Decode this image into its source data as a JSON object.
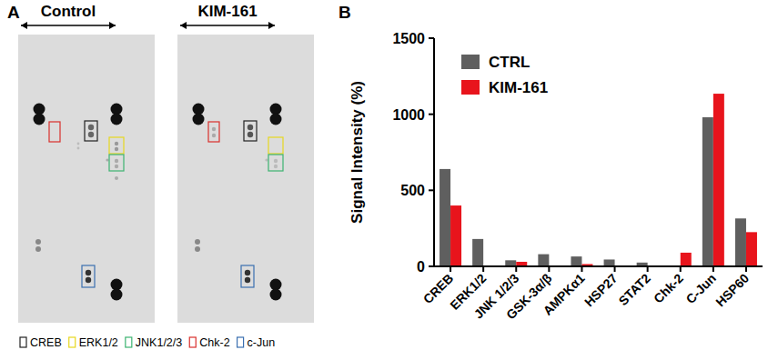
{
  "panel_a": {
    "label": "A",
    "membranes": [
      {
        "title": "Control"
      },
      {
        "title": "KIM-161"
      }
    ],
    "legend": [
      {
        "label": "CREB",
        "color": "#222222"
      },
      {
        "label": "ERK1/2",
        "color": "#e6d81e"
      },
      {
        "label": "JNK1/2/3",
        "color": "#3cb371"
      },
      {
        "label": "Chk-2",
        "color": "#d9302c"
      },
      {
        "label": "c-Jun",
        "color": "#3a6fb0"
      }
    ]
  },
  "chart_data": {
    "type": "bar",
    "label": "B",
    "y_label": "Signal Intensity (%)",
    "categories": [
      "CREB",
      "ERK1/2",
      "JNK 1/2/3",
      "GSK-3α/β",
      "AMPKα1",
      "HSP27",
      "STAT2",
      "Chk-2",
      "C-Jun",
      "HSP60"
    ],
    "series": [
      {
        "name": "CTRL",
        "color": "#5f5f5f",
        "values": [
          640,
          180,
          40,
          80,
          65,
          45,
          25,
          0,
          980,
          315
        ]
      },
      {
        "name": "KIM-161",
        "color": "#e8141c",
        "values": [
          400,
          0,
          30,
          0,
          15,
          0,
          0,
          90,
          1135,
          225
        ]
      }
    ],
    "ylim": [
      0,
      1500
    ],
    "yticks": [
      0,
      500,
      1000,
      1500
    ],
    "legend": "upper left"
  }
}
